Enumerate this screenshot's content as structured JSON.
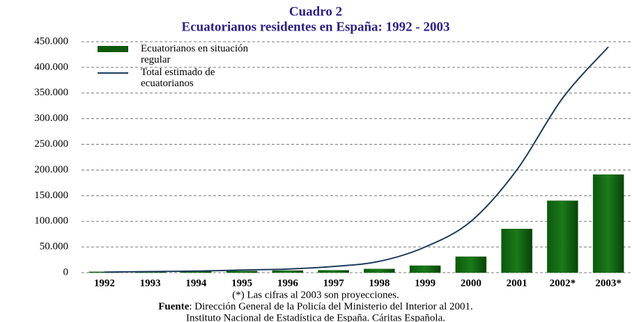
{
  "chart_data": {
    "type": "bar_line",
    "title": "Cuadro 2",
    "subtitle": "Ecuatorianos residentes en España: 1992 - 2003",
    "categories": [
      "1992",
      "1993",
      "1994",
      "1995",
      "1996",
      "1997",
      "1998",
      "1999",
      "2000",
      "2001",
      "2002*",
      "2003*"
    ],
    "series": [
      {
        "name": "Ecuatorianos en situación regular",
        "type": "bar",
        "color": "#0b5a0b",
        "values": [
          1500,
          2000,
          2500,
          3000,
          4000,
          4500,
          7000,
          13500,
          31000,
          85000,
          140000,
          191000
        ]
      },
      {
        "name": "Total estimado de ecuatorianos",
        "type": "line",
        "color": "#1c3b5e",
        "values": [
          1000,
          2000,
          3000,
          5000,
          7000,
          12000,
          22000,
          50000,
          100000,
          200000,
          340000,
          440000
        ]
      }
    ],
    "ylim": [
      0,
      450000
    ],
    "yticks": [
      0,
      {
        "value": 50000,
        "label": "50.000"
      },
      {
        "value": 100000,
        "label": "100.000"
      },
      {
        "value": 150000,
        "label": "150.000"
      },
      {
        "value": 200000,
        "label": "200.000"
      },
      {
        "value": 250000,
        "label": "250.000"
      },
      {
        "value": 300000,
        "label": "300.000"
      },
      {
        "value": 350000,
        "label": "350.000"
      },
      {
        "value": 400000,
        "label": "400.000"
      },
      {
        "value": 450000,
        "label": "450.000"
      }
    ],
    "grid": true,
    "legend": "top-left",
    "note": "(*) Las cifras al 2003 son proyecciones.",
    "source_label": "Fuente",
    "source": ": Dirección General de la Policía del Ministerio del Interior al 2001.",
    "source_2": "Instituto Nacional de Estadística de España. Cáritas Española."
  }
}
